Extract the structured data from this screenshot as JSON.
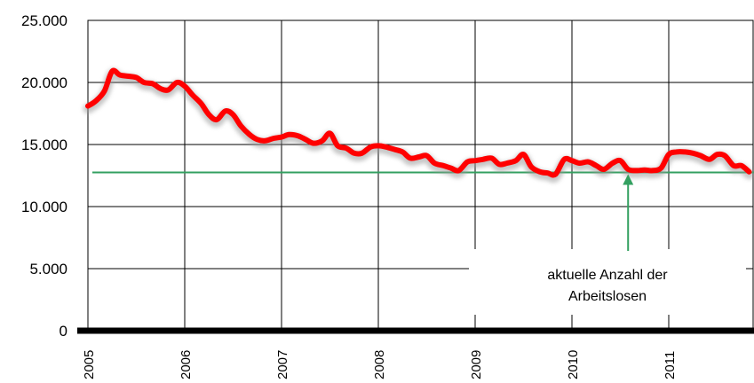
{
  "chart_data": {
    "type": "line",
    "title": "",
    "xlabel": "",
    "ylabel": "",
    "ylim": [
      0,
      25000
    ],
    "y_ticks": [
      0,
      5000,
      10000,
      15000,
      20000,
      25000
    ],
    "y_tick_labels": [
      "0",
      "5.000",
      "10.000",
      "15.000",
      "20.000",
      "25.000"
    ],
    "x_ticks": [
      2005,
      2006,
      2007,
      2008,
      2009,
      2010,
      2011
    ],
    "x_tick_labels": [
      "2005",
      "2006",
      "2007",
      "2008",
      "2009",
      "2010",
      "2011"
    ],
    "xlim": [
      2005,
      2011.85
    ],
    "grid": true,
    "legend": "none",
    "series": [
      {
        "color": "#ff0000",
        "x": [
          2005.0,
          2005.08,
          2005.17,
          2005.25,
          2005.33,
          2005.42,
          2005.5,
          2005.58,
          2005.67,
          2005.75,
          2005.83,
          2005.92,
          2006.0,
          2006.08,
          2006.17,
          2006.25,
          2006.33,
          2006.42,
          2006.5,
          2006.58,
          2006.67,
          2006.75,
          2006.83,
          2006.92,
          2007.0,
          2007.08,
          2007.17,
          2007.25,
          2007.33,
          2007.42,
          2007.5,
          2007.58,
          2007.67,
          2007.75,
          2007.83,
          2007.92,
          2008.0,
          2008.08,
          2008.17,
          2008.25,
          2008.33,
          2008.42,
          2008.5,
          2008.58,
          2008.67,
          2008.75,
          2008.83,
          2008.92,
          2009.0,
          2009.08,
          2009.17,
          2009.25,
          2009.33,
          2009.42,
          2009.5,
          2009.58,
          2009.67,
          2009.75,
          2009.83,
          2009.92,
          2010.0,
          2010.08,
          2010.17,
          2010.25,
          2010.33,
          2010.42,
          2010.5,
          2010.58,
          2010.67,
          2010.75,
          2010.83,
          2010.92,
          2011.0,
          2011.08,
          2011.17,
          2011.25,
          2011.33,
          2011.42,
          2011.5,
          2011.58,
          2011.67,
          2011.75,
          2011.83
        ],
        "values": [
          18100,
          18500,
          19300,
          20900,
          20600,
          20500,
          20400,
          20000,
          19900,
          19500,
          19400,
          20000,
          19700,
          19000,
          18300,
          17400,
          17000,
          17700,
          17400,
          16500,
          15800,
          15400,
          15300,
          15500,
          15600,
          15800,
          15700,
          15400,
          15100,
          15300,
          15900,
          14900,
          14700,
          14300,
          14300,
          14800,
          14900,
          14800,
          14600,
          14400,
          13900,
          14000,
          14100,
          13500,
          13300,
          13100,
          12900,
          13600,
          13700,
          13800,
          13900,
          13400,
          13500,
          13700,
          14200,
          13200,
          12800,
          12700,
          12600,
          13800,
          13700,
          13500,
          13600,
          13300,
          13000,
          13500,
          13700,
          13000,
          12900,
          12950,
          12900,
          13100,
          14200,
          14400,
          14400,
          14300,
          14100,
          13800,
          14200,
          14100,
          13300,
          13300,
          12800
        ]
      }
    ],
    "reference_line": {
      "value": 12750,
      "color": "#33a060"
    },
    "annotation": {
      "lines": [
        "aktuelle Anzahl der",
        "Arbeitslosen"
      ],
      "arrow_x": 2010.58,
      "color": "#33a060"
    }
  }
}
